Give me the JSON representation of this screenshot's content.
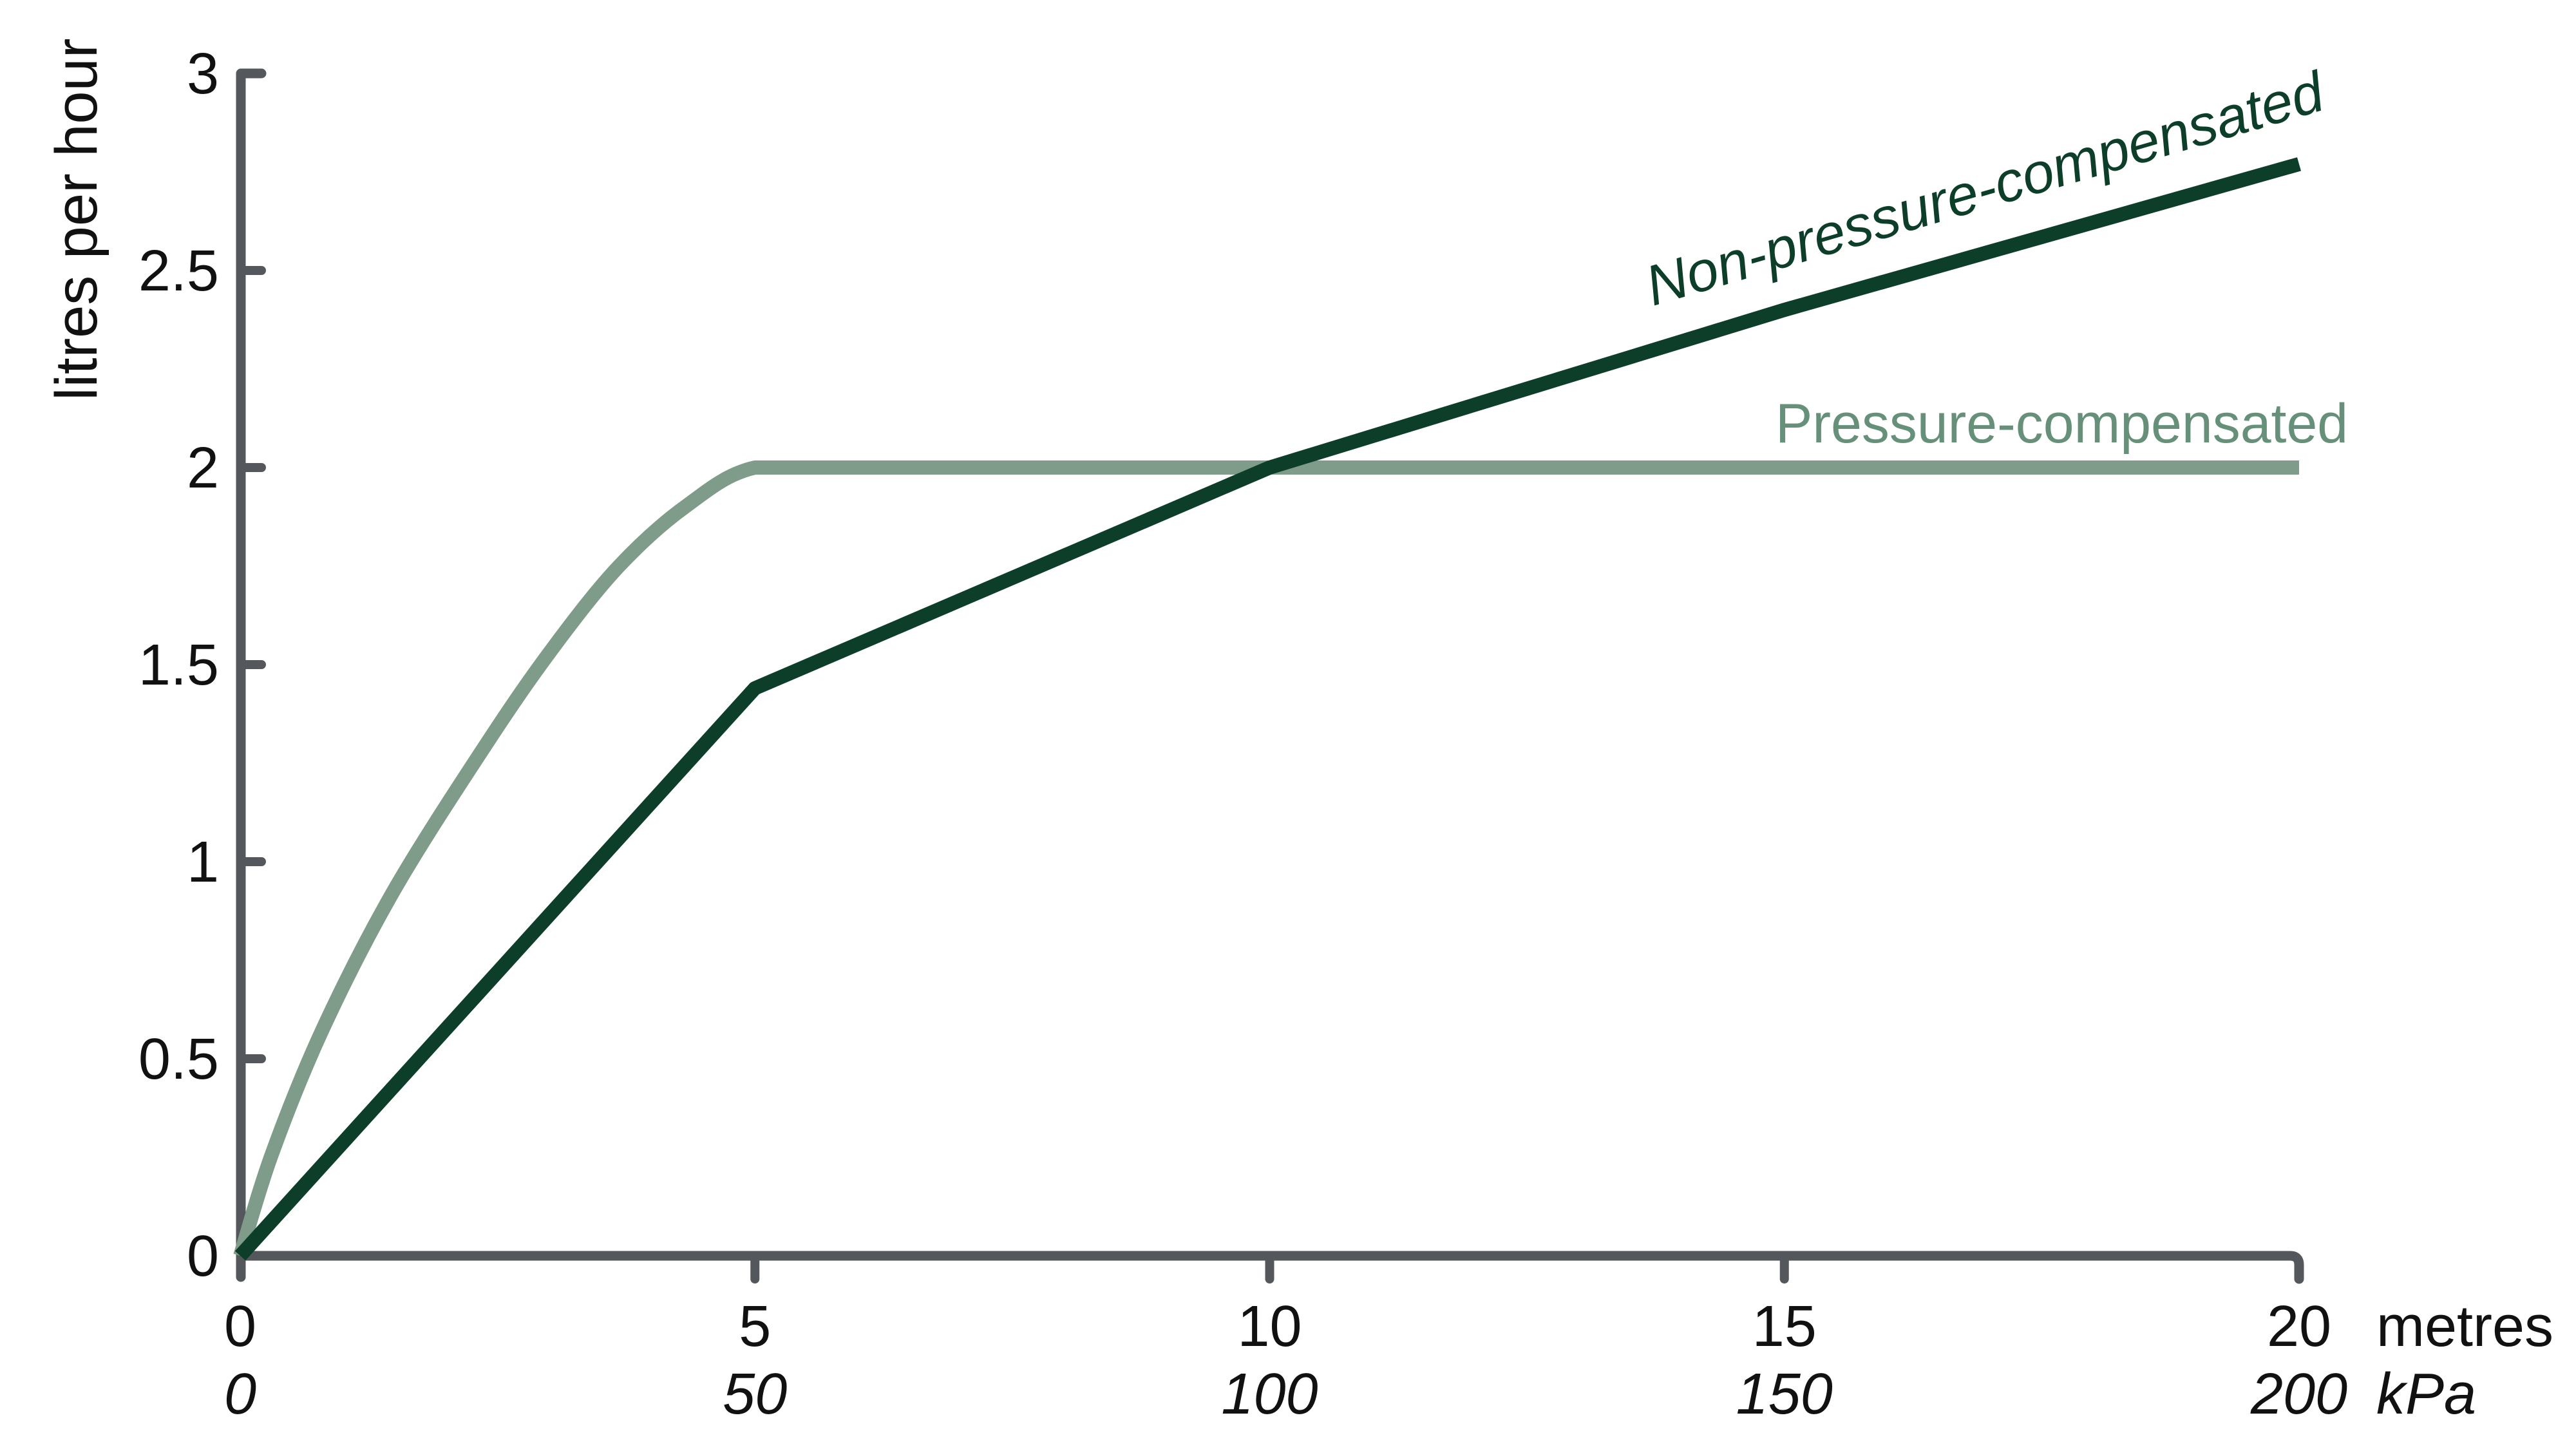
{
  "chart_data": {
    "type": "line",
    "title": "",
    "ylabel": "litres per hour",
    "xlabel_primary_unit": "metres",
    "xlabel_secondary_unit": "kPa",
    "ylim": [
      0,
      3
    ],
    "xlim": [
      0,
      20
    ],
    "grid": false,
    "legend": "inline-labels",
    "axis_color": "#54585d",
    "text_color": "#111111",
    "y_ticks": [
      {
        "value": 0,
        "label": "0"
      },
      {
        "value": 0.5,
        "label": "0.5"
      },
      {
        "value": 1,
        "label": "1"
      },
      {
        "value": 1.5,
        "label": "1.5"
      },
      {
        "value": 2,
        "label": "2"
      },
      {
        "value": 2.5,
        "label": "2.5"
      },
      {
        "value": 3,
        "label": "3"
      }
    ],
    "x_ticks": [
      {
        "value": 0,
        "metres": "0",
        "kpa": "0"
      },
      {
        "value": 5,
        "metres": "5",
        "kpa": "50"
      },
      {
        "value": 10,
        "metres": "10",
        "kpa": "100"
      },
      {
        "value": 15,
        "metres": "15",
        "kpa": "150"
      },
      {
        "value": 20,
        "metres": "20",
        "kpa": "200"
      }
    ],
    "series": [
      {
        "name": "Non-pressure-compensated",
        "color": "#0d3e29",
        "label_color": "#0d3e29",
        "style": "polyline",
        "points": [
          [
            0,
            0
          ],
          [
            5,
            1.44
          ],
          [
            10,
            2.0
          ],
          [
            15,
            2.4
          ],
          [
            20,
            2.77
          ]
        ]
      },
      {
        "name": "Pressure-compensated",
        "color": "#7e9c89",
        "label_color": "#66907a",
        "style": "smooth",
        "smooth_until_index": 8,
        "points": [
          [
            0,
            0
          ],
          [
            0.31,
            0.26
          ],
          [
            0.81,
            0.58
          ],
          [
            1.5,
            0.93
          ],
          [
            2.42,
            1.31
          ],
          [
            3.06,
            1.55
          ],
          [
            3.68,
            1.75
          ],
          [
            4.32,
            1.9
          ],
          [
            5,
            2
          ],
          [
            6,
            2
          ],
          [
            20,
            2
          ]
        ]
      }
    ]
  }
}
